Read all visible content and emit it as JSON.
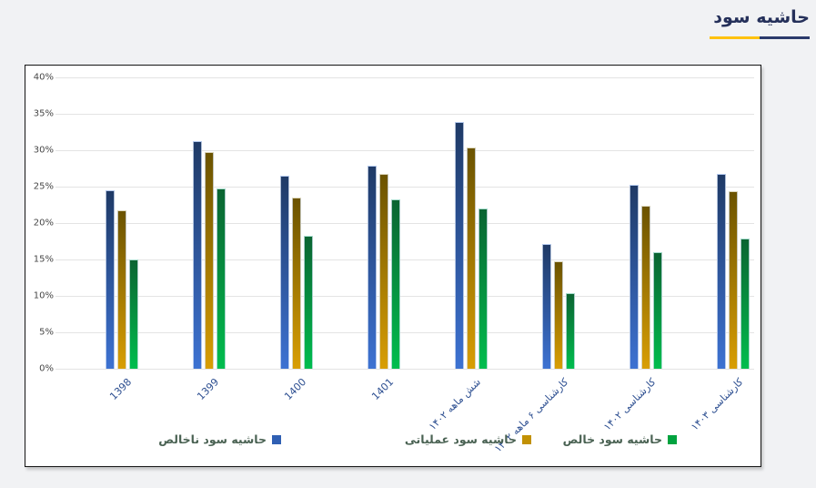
{
  "page": {
    "title": "حاشیه سود",
    "accent_gold": "#ffc20e",
    "accent_navy": "#2b3a6b",
    "background": "#f1f2f4"
  },
  "chart_data": {
    "type": "bar",
    "title": "حاشیه سود",
    "categories": [
      "1398",
      "1399",
      "1400",
      "1401",
      "شش ماهه ۱۴۰۲",
      "کارشناسی ۶ ماهه ۱۴۰۲",
      "کارشناسی ۱۴۰۲",
      "کارشناسی ۱۴۰۳"
    ],
    "series": [
      {
        "name": "حاشیه سود ناخالص",
        "legend_color": "#2f5fb3",
        "gradient_top": "#1f3a66",
        "gradient_bottom": "#3d72d2",
        "values": [
          24.5,
          31.3,
          26.5,
          27.9,
          33.9,
          17.1,
          25.3,
          26.8
        ]
      },
      {
        "name": "حاشیه سود عملیاتی",
        "legend_color": "#c29104",
        "gradient_top": "#6b5300",
        "gradient_bottom": "#d89e04",
        "values": [
          21.8,
          29.7,
          23.5,
          26.8,
          30.4,
          14.8,
          22.4,
          24.4
        ]
      },
      {
        "name": "حاشیه سود خالص",
        "legend_color": "#00a33f",
        "gradient_top": "#0b6432",
        "gradient_bottom": "#00bd4e",
        "values": [
          15.0,
          24.8,
          18.2,
          23.3,
          22.0,
          10.4,
          16.0,
          17.9
        ]
      }
    ],
    "ylim": [
      0,
      40
    ],
    "ytick_step": 5,
    "ytick_suffix": "%",
    "grid": true,
    "legend_position": "bottom",
    "xlabel": "",
    "ylabel": ""
  }
}
